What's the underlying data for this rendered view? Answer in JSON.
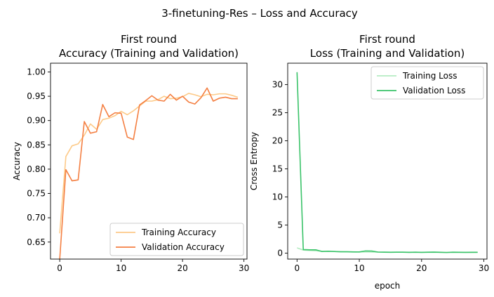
{
  "figure": {
    "suptitle": "3-finetuning-Res – Loss and Accuracy"
  },
  "chart_data": [
    {
      "type": "line",
      "title_line1": "First round",
      "title_line2": "Accuracy (Training and Validation)",
      "xlabel": "",
      "ylabel": "Accuracy",
      "xlim": [
        -1.5,
        30.5
      ],
      "ylim": [
        0.615,
        1.018
      ],
      "xticks": [
        0,
        10,
        20,
        30
      ],
      "yticks": [
        0.65,
        0.7,
        0.75,
        0.8,
        0.85,
        0.9,
        0.95,
        1.0
      ],
      "ytick_decimals": 2,
      "legend_position": "lower right",
      "grid": false,
      "x": [
        0,
        1,
        2,
        3,
        4,
        5,
        6,
        7,
        8,
        9,
        10,
        11,
        12,
        13,
        14,
        15,
        16,
        17,
        18,
        19,
        20,
        21,
        22,
        23,
        24,
        25,
        26,
        27,
        28,
        29
      ],
      "series": [
        {
          "name": "Training Accuracy",
          "color": "#fdca88",
          "values": [
            0.668,
            0.826,
            0.848,
            0.852,
            0.87,
            0.893,
            0.882,
            0.902,
            0.905,
            0.91,
            0.919,
            0.912,
            0.92,
            0.93,
            0.94,
            0.94,
            0.943,
            0.95,
            0.945,
            0.946,
            0.949,
            0.956,
            0.953,
            0.949,
            0.954,
            0.953,
            0.955,
            0.955,
            0.952,
            0.948
          ]
        },
        {
          "name": "Validation Accuracy",
          "color": "#f47f42",
          "values": [
            0.615,
            0.799,
            0.776,
            0.778,
            0.898,
            0.874,
            0.877,
            0.933,
            0.908,
            0.916,
            0.915,
            0.866,
            0.861,
            0.932,
            0.941,
            0.951,
            0.942,
            0.94,
            0.954,
            0.942,
            0.95,
            0.938,
            0.934,
            0.947,
            0.967,
            0.94,
            0.946,
            0.948,
            0.945,
            0.945
          ]
        }
      ]
    },
    {
      "type": "line",
      "title_line1": "First round",
      "title_line2": "Loss (Training and Validation)",
      "xlabel": "epoch",
      "ylabel": "Cross Entropy",
      "xlim": [
        -1.5,
        30.5
      ],
      "ylim": [
        -1.05,
        33.8
      ],
      "xticks": [
        0,
        10,
        20,
        30
      ],
      "yticks": [
        0,
        5,
        10,
        15,
        20,
        25,
        30
      ],
      "ytick_decimals": 0,
      "legend_position": "upper right",
      "grid": false,
      "x": [
        0,
        1,
        2,
        3,
        4,
        5,
        6,
        7,
        8,
        9,
        10,
        11,
        12,
        13,
        14,
        15,
        16,
        17,
        18,
        19,
        20,
        21,
        22,
        23,
        24,
        25,
        26,
        27,
        28,
        29
      ],
      "series": [
        {
          "name": "Training Loss",
          "color": "#b5ebc2",
          "values": [
            0.95,
            0.55,
            0.48,
            0.42,
            0.35,
            0.31,
            0.3,
            0.27,
            0.25,
            0.24,
            0.22,
            0.23,
            0.21,
            0.2,
            0.19,
            0.18,
            0.18,
            0.17,
            0.17,
            0.16,
            0.16,
            0.15,
            0.15,
            0.15,
            0.14,
            0.14,
            0.14,
            0.14,
            0.13,
            0.14
          ]
        },
        {
          "name": "Validation Loss",
          "color": "#3ac369",
          "values": [
            32.2,
            0.65,
            0.6,
            0.6,
            0.3,
            0.35,
            0.3,
            0.25,
            0.25,
            0.22,
            0.22,
            0.4,
            0.38,
            0.2,
            0.17,
            0.16,
            0.17,
            0.17,
            0.15,
            0.17,
            0.15,
            0.18,
            0.19,
            0.16,
            0.12,
            0.18,
            0.16,
            0.15,
            0.16,
            0.16
          ]
        }
      ]
    }
  ]
}
